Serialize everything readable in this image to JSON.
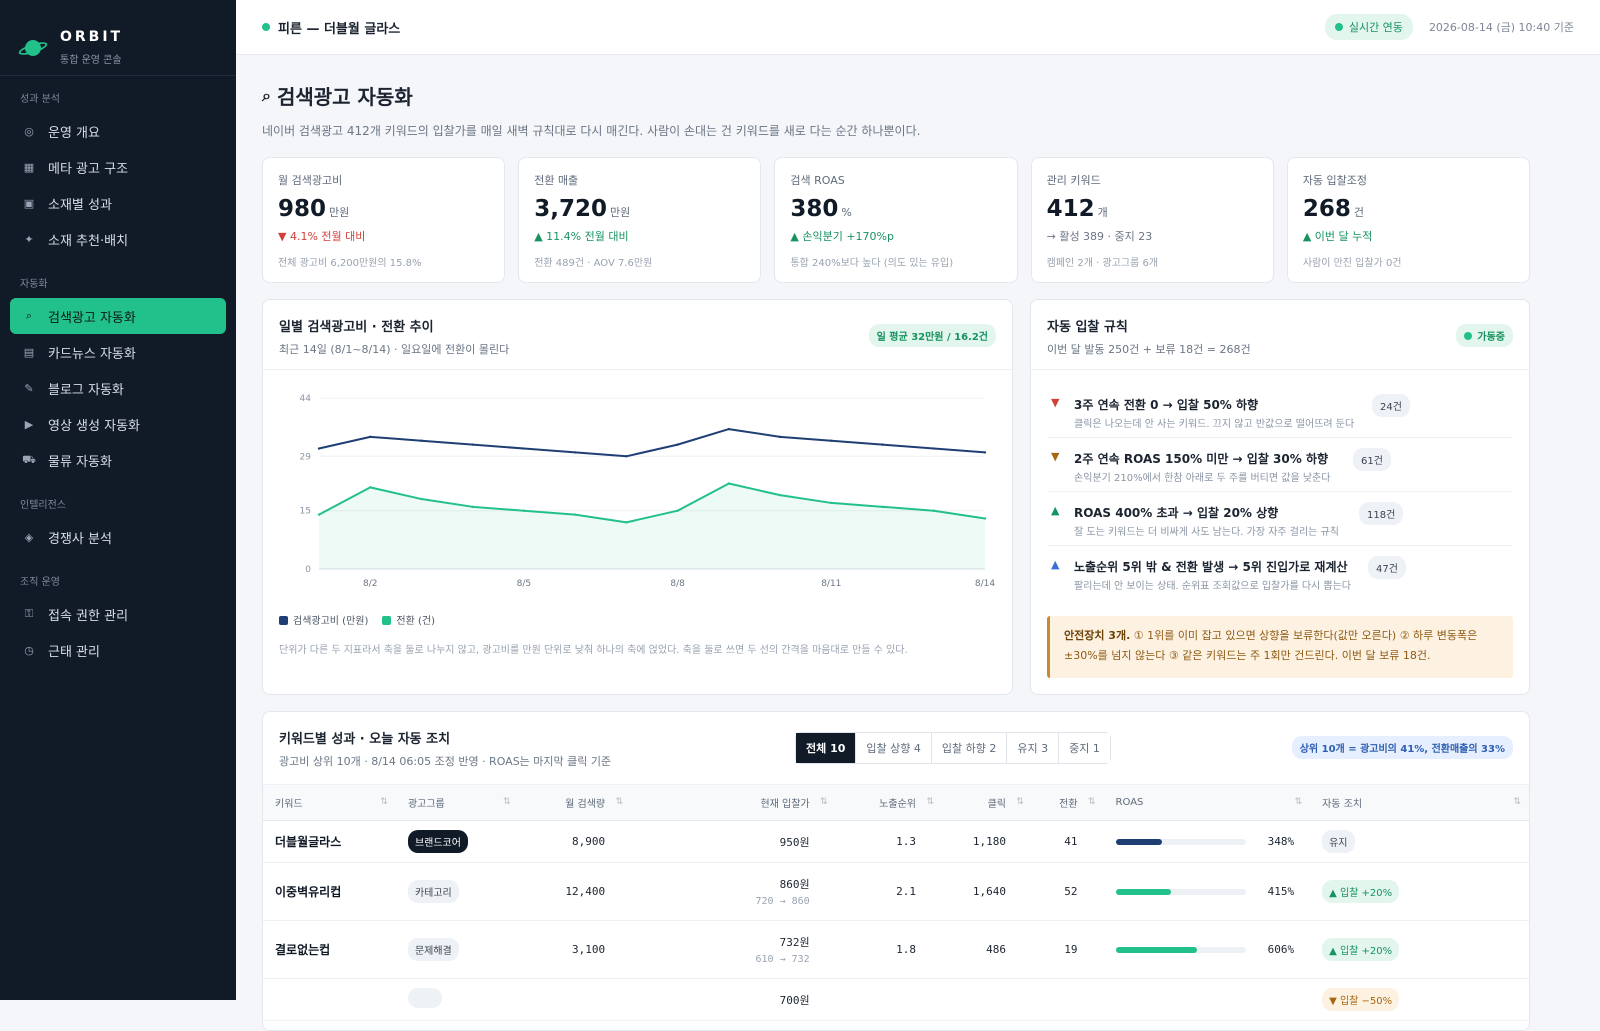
{
  "brand": {
    "name": "ORBIT",
    "subtitle": "통합 운영 콘솔"
  },
  "sidebar": {
    "sections": [
      {
        "title": "성과 분석",
        "items": [
          {
            "label": "운영 개요",
            "icon": "dashboard-icon",
            "glyph": "◎"
          },
          {
            "label": "메타 광고 구조",
            "icon": "structure-icon",
            "glyph": "▦"
          },
          {
            "label": "소재별 성과",
            "icon": "creative-icon",
            "glyph": "▣"
          },
          {
            "label": "소재 추천·배치",
            "icon": "sparkle-icon",
            "glyph": "✦"
          }
        ]
      },
      {
        "title": "자동화",
        "items": [
          {
            "label": "검색광고 자동화",
            "icon": "search-icon",
            "glyph": "⌕",
            "active": true
          },
          {
            "label": "카드뉴스 자동화",
            "icon": "cards-icon",
            "glyph": "▤"
          },
          {
            "label": "블로그 자동화",
            "icon": "pencil-icon",
            "glyph": "✎"
          },
          {
            "label": "영상 생성 자동화",
            "icon": "play-icon",
            "glyph": "▶"
          },
          {
            "label": "물류 자동화",
            "icon": "truck-icon",
            "glyph": "⛟"
          }
        ]
      },
      {
        "title": "인텔리전스",
        "items": [
          {
            "label": "경쟁사 분석",
            "icon": "target-icon",
            "glyph": "◈"
          }
        ]
      },
      {
        "title": "조직 운영",
        "items": [
          {
            "label": "접속 권한 관리",
            "icon": "key-icon",
            "glyph": "⚿"
          },
          {
            "label": "근태 관리",
            "icon": "clock-icon",
            "glyph": "◷"
          }
        ]
      }
    ]
  },
  "topbar": {
    "title": "피른 — 더블월 글라스",
    "live": "실시간 연동",
    "date": "2026-08-14 (금) 10:40 기준"
  },
  "page": {
    "title": "검색광고 자동화",
    "title_icon": "⌕",
    "description": "네이버 검색광고 412개 키워드의 입찰가를 매일 새벽 규칙대로 다시 매긴다. 사람이 손대는 건 키워드를 새로 다는 순간 하나뿐이다."
  },
  "kpis": [
    {
      "label": "월 검색광고비",
      "value": "980",
      "unit": "만원",
      "delta": "▼ 4.1% 전월 대비",
      "tone": "down",
      "note": "전체 광고비 6,200만원의 15.8%"
    },
    {
      "label": "전환 매출",
      "value": "3,720",
      "unit": "만원",
      "delta": "▲ 11.4% 전월 대비",
      "tone": "up",
      "note": "전환 489건 · AOV 7.6만원"
    },
    {
      "label": "검색 ROAS",
      "value": "380",
      "unit": "%",
      "delta": "▲ 손익분기 +170%p",
      "tone": "up",
      "note": "통합 240%보다 높다 (의도 있는 유입)"
    },
    {
      "label": "관리 키워드",
      "value": "412",
      "unit": "개",
      "delta": "→ 활성 389 · 중지 23",
      "tone": "neutral",
      "note": "캠페인 2개 · 광고그룹 6개"
    },
    {
      "label": "자동 입찰조정",
      "value": "268",
      "unit": "건",
      "delta": "▲ 이번 달 누적",
      "tone": "up",
      "note": "사람이 만진 입찰가 0건"
    }
  ],
  "trend": {
    "title": "일별 검색광고비 · 전환 추이",
    "subtitle": "최근 14일 (8/1~8/14) · 일요일에 전환이 몰린다",
    "badge": "일 평균 32만원 / 16.2건",
    "legend_spend": "검색광고비 (만원)",
    "legend_conv": "전환 (건)",
    "note": "단위가 다른 두 지표라서 축을 둘로 나누지 않고, 광고비를 만원 단위로 낮춰 하나의 축에 얹었다. 축을 둘로 쓰면 두 선의 간격을 마음대로 만들 수 있다."
  },
  "chart_data": {
    "type": "line",
    "x": [
      "8/1",
      "8/2",
      "8/3",
      "8/4",
      "8/5",
      "8/6",
      "8/7",
      "8/8",
      "8/9",
      "8/10",
      "8/11",
      "8/12",
      "8/13",
      "8/14"
    ],
    "x_tick_labels": [
      "8/2",
      "8/5",
      "8/8",
      "8/11",
      "8/14"
    ],
    "y_ticks": [
      0,
      15,
      29,
      44
    ],
    "ylim": [
      0,
      44
    ],
    "grid": true,
    "legend_placement": "bottom-left",
    "series": [
      {
        "name": "검색광고비 (만원)",
        "color": "#1f3f74",
        "values": [
          31,
          34,
          33,
          32,
          31,
          30,
          29,
          32,
          36,
          34,
          33,
          32,
          31,
          30
        ]
      },
      {
        "name": "전환 (건)",
        "color": "#22c08b",
        "values": [
          14,
          21,
          18,
          16,
          15,
          14,
          12,
          15,
          22,
          19,
          17,
          16,
          15,
          13
        ]
      }
    ]
  },
  "rules": {
    "title": "자동 입찰 규칙",
    "subtitle": "이번 달 발동 250건 + 보류 18건 = 268건",
    "status": "가동중",
    "items": [
      {
        "icon": "arrow-down-icon",
        "glyph": "▼",
        "color": "#d1403a",
        "title": "3주 연속 전환 0 → 입찰 50% 하향",
        "sub": "클릭은 나오는데 안 사는 키워드. 끄지 않고 반값으로 떨어뜨려 둔다",
        "count": "24건"
      },
      {
        "icon": "arrow-down-icon",
        "glyph": "▼",
        "color": "#a5670f",
        "title": "2주 연속 ROAS 150% 미만 → 입찰 30% 하향",
        "sub": "손익분기 210%에서 한참 아래로 두 주를 버티면 값을 낮춘다",
        "count": "61건"
      },
      {
        "icon": "arrow-up-icon",
        "glyph": "▲",
        "color": "#17935f",
        "title": "ROAS 400% 초과 → 입찰 20% 상향",
        "sub": "잘 도는 키워드는 더 비싸게 사도 남는다. 가장 자주 걸리는 규칙",
        "count": "118건"
      },
      {
        "icon": "arrow-up-icon",
        "glyph": "▲",
        "color": "#3b6fd1",
        "title": "노출순위 5위 밖 & 전환 발생 → 5위 진입가로 재계산",
        "sub": "팔리는데 안 보이는 상태. 순위표 조회값으로 입찰가를 다시 뽑는다",
        "count": "47건"
      }
    ],
    "safety_bold": "안전장치 3개.",
    "safety_text": " ① 1위를 이미 잡고 있으면 상향을 보류한다(값만 오른다) ② 하루 변동폭은 ±30%를 넘지 않는다 ③ 같은 키워드는 주 1회만 건드린다. 이번 달 보류 18건."
  },
  "keywords": {
    "title": "키워드별 성과 · 오늘 자동 조치",
    "subtitle": "광고비 상위 10개 · 8/14 06:05 조정 반영 · ROAS는 마지막 클릭 기준",
    "filters": [
      "전체 10",
      "입찰 상향 4",
      "입찰 하향 2",
      "유지 3",
      "중지 1"
    ],
    "summary": "상위 10개 = 광고비의 41%, 전환매출의 33%",
    "columns": [
      "키워드",
      "광고그룹",
      "월 검색량",
      "현재 입찰가",
      "노출순위",
      "클릭",
      "전환",
      "ROAS",
      "자동 조치"
    ],
    "rows": [
      {
        "keyword": "더블월글라스",
        "group": "브랜드코어",
        "group_dark": true,
        "volume": "8,900",
        "bid": "950원",
        "bid_change": "",
        "rank": "1.3",
        "clicks": "1,180",
        "conv": "41",
        "roas": "348%",
        "roas_pct": 0.348,
        "roas_color": "#1f3f74",
        "action": "유지",
        "action_tone": "keep"
      },
      {
        "keyword": "이중벽유리컵",
        "group": "카테고리",
        "group_dark": false,
        "volume": "12,400",
        "bid": "860원",
        "bid_change": "720 → 860",
        "rank": "2.1",
        "clicks": "1,640",
        "conv": "52",
        "roas": "415%",
        "roas_pct": 0.415,
        "roas_color": "#22c08b",
        "action": "▲ 입찰 +20%",
        "action_tone": "up"
      },
      {
        "keyword": "결로없는컵",
        "group": "문제해결",
        "group_dark": false,
        "volume": "3,100",
        "bid": "732원",
        "bid_change": "610 → 732",
        "rank": "1.8",
        "clicks": "486",
        "conv": "19",
        "roas": "606%",
        "roas_pct": 0.606,
        "roas_color": "#22c08b",
        "action": "▲ 입찰 +20%",
        "action_tone": "up"
      },
      {
        "keyword": "",
        "group": "",
        "group_dark": false,
        "volume": "",
        "bid": "700원",
        "bid_change": "",
        "rank": "",
        "clicks": "",
        "conv": "",
        "roas": "",
        "roas_pct": 0,
        "roas_color": "#d1403a",
        "action": "▼ 입찰 −50%",
        "action_tone": "down"
      }
    ]
  }
}
